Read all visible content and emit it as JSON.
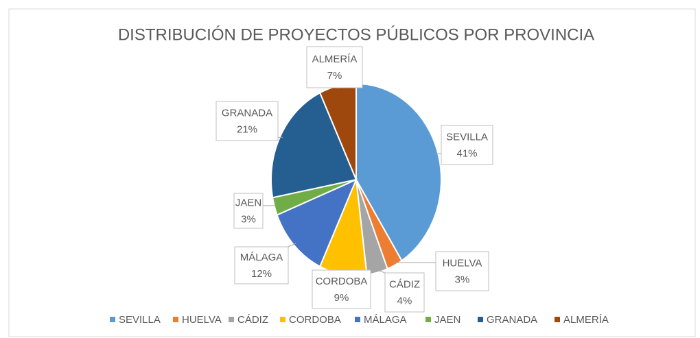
{
  "chart_data": {
    "type": "pie",
    "title": "DISTRIBUCIÓN DE PROYECTOS PÚBLICOS POR PROVINCIA",
    "categories": [
      "SEVILLA",
      "HUELVA",
      "CÁDIZ",
      "CORDOBA",
      "MÁLAGA",
      "JAEN",
      "GRANADA",
      "ALMERÍA"
    ],
    "values": [
      41,
      3,
      4,
      9,
      12,
      3,
      21,
      7
    ],
    "value_labels": [
      "41%",
      "3%",
      "4%",
      "9%",
      "12%",
      "3%",
      "21%",
      "7%"
    ],
    "colors": [
      "#5b9bd5",
      "#ed7d31",
      "#a5a5a5",
      "#ffc000",
      "#4472c4",
      "#70ad47",
      "#255e91",
      "#9e480e"
    ],
    "legend": "bottom"
  }
}
